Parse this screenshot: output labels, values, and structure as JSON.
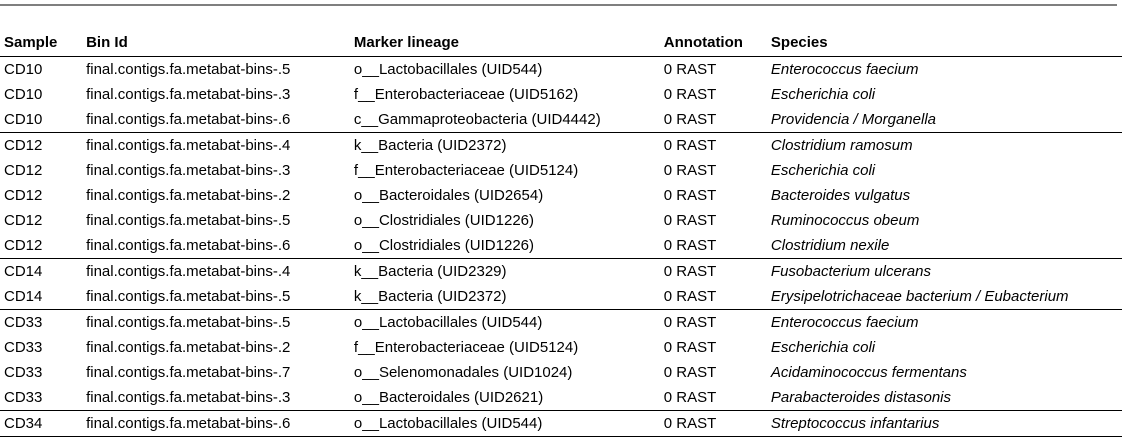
{
  "headers": {
    "sample": "Sample",
    "bin_id": "Bin Id",
    "marker_lineage": "Marker lineage",
    "annotation": "Annotation",
    "species": "Species"
  },
  "rows": [
    {
      "sample": "CD10",
      "bin_id": "final.contigs.fa.metabat-bins-.5",
      "marker": "o__Lactobacillales (UID544)",
      "annotation": "0 RAST",
      "species": "Enterococcus faecium",
      "group_start": true
    },
    {
      "sample": "CD10",
      "bin_id": "final.contigs.fa.metabat-bins-.3",
      "marker": "f__Enterobacteriaceae (UID5162)",
      "annotation": "0 RAST",
      "species": "Escherichia coli",
      "group_start": false
    },
    {
      "sample": "CD10",
      "bin_id": "final.contigs.fa.metabat-bins-.6",
      "marker": "c__Gammaproteobacteria (UID4442)",
      "annotation": "0 RAST",
      "species": "Providencia / Morganella",
      "group_start": false
    },
    {
      "sample": "CD12",
      "bin_id": "final.contigs.fa.metabat-bins-.4",
      "marker": "k__Bacteria (UID2372)",
      "annotation": "0 RAST",
      "species": "Clostridium ramosum",
      "group_start": true
    },
    {
      "sample": "CD12",
      "bin_id": "final.contigs.fa.metabat-bins-.3",
      "marker": "f__Enterobacteriaceae (UID5124)",
      "annotation": "0 RAST",
      "species": "Escherichia coli",
      "group_start": false
    },
    {
      "sample": "CD12",
      "bin_id": "final.contigs.fa.metabat-bins-.2",
      "marker": "o__Bacteroidales (UID2654)",
      "annotation": "0 RAST",
      "species": "Bacteroides vulgatus",
      "group_start": false
    },
    {
      "sample": "CD12",
      "bin_id": "final.contigs.fa.metabat-bins-.5",
      "marker": "o__Clostridiales (UID1226)",
      "annotation": "0 RAST",
      "species": "Ruminococcus obeum",
      "group_start": false
    },
    {
      "sample": "CD12",
      "bin_id": "final.contigs.fa.metabat-bins-.6",
      "marker": "o__Clostridiales (UID1226)",
      "annotation": "0 RAST",
      "species": "Clostridium nexile",
      "group_start": false
    },
    {
      "sample": "CD14",
      "bin_id": "final.contigs.fa.metabat-bins-.4",
      "marker": "k__Bacteria (UID2329)",
      "annotation": "0 RAST",
      "species": "Fusobacterium ulcerans",
      "group_start": true
    },
    {
      "sample": "CD14",
      "bin_id": "final.contigs.fa.metabat-bins-.5",
      "marker": "k__Bacteria (UID2372)",
      "annotation": "0 RAST",
      "species": "Erysipelotrichaceae bacterium / Eubacterium",
      "group_start": false
    },
    {
      "sample": "CD33",
      "bin_id": "final.contigs.fa.metabat-bins-.5",
      "marker": "o__Lactobacillales (UID544)",
      "annotation": "0 RAST",
      "species": "Enterococcus faecium",
      "group_start": true
    },
    {
      "sample": "CD33",
      "bin_id": "final.contigs.fa.metabat-bins-.2",
      "marker": "f__Enterobacteriaceae (UID5124)",
      "annotation": "0 RAST",
      "species": "Escherichia coli",
      "group_start": false
    },
    {
      "sample": "CD33",
      "bin_id": "final.contigs.fa.metabat-bins-.7",
      "marker": "o__Selenomonadales (UID1024)",
      "annotation": "0 RAST",
      "species": "Acidaminococcus fermentans",
      "group_start": false
    },
    {
      "sample": "CD33",
      "bin_id": "final.contigs.fa.metabat-bins-.3",
      "marker": "o__Bacteroidales (UID2621)",
      "annotation": "0 RAST",
      "species": "Parabacteroides distasonis",
      "group_start": false
    },
    {
      "sample": "CD34",
      "bin_id": "final.contigs.fa.metabat-bins-.6",
      "marker": "o__Lactobacillales (UID544)",
      "annotation": "0 RAST",
      "species": "Streptococcus infantarius",
      "group_start": true
    }
  ]
}
